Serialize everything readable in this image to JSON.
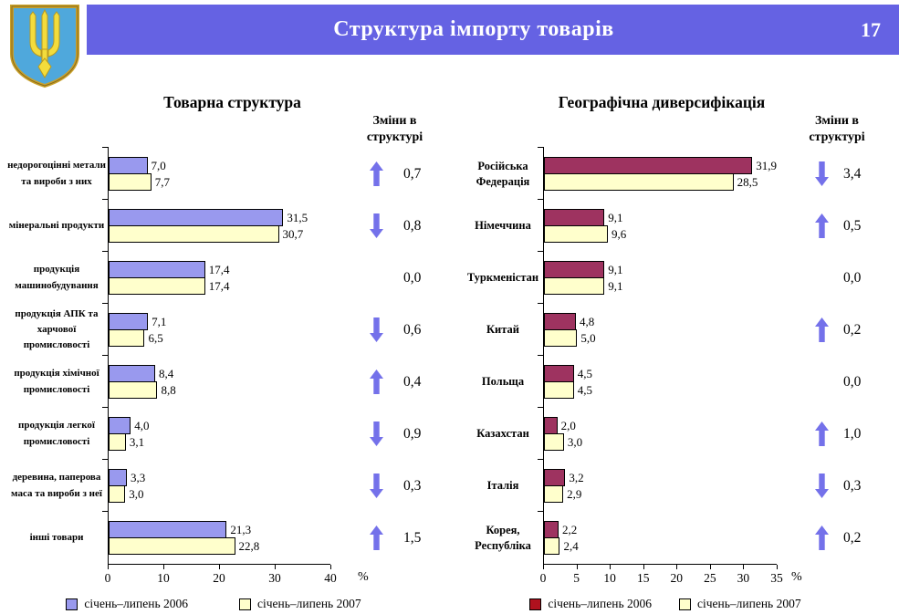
{
  "header": {
    "title": "Структура імпорту товарів",
    "page_number": "17"
  },
  "style": {
    "accent_color": "#6562E3",
    "arrow_color": "#7471EA",
    "crest_icon": "ukraine-trident-crest"
  },
  "chart_data": [
    {
      "type": "bar",
      "orientation": "horizontal",
      "title": "Товарна структура",
      "changes_label": "Зміни в\nструктурі",
      "xlabel": "%",
      "xlim": [
        0,
        40
      ],
      "xticks": [
        0,
        10,
        20,
        30,
        40
      ],
      "xtick_labels": [
        "0",
        "10",
        "20",
        "30",
        "40"
      ],
      "grid": false,
      "legend_position": "bottom",
      "series": [
        {
          "name": "січень–липень 2006",
          "color": "#9999EE",
          "swatch": "#9999EE"
        },
        {
          "name": "січень–липень 2007",
          "color": "#FFFFCC",
          "swatch": "#FFFFCC"
        }
      ],
      "rows": [
        {
          "category": "недорогоцінні метали та вироби з них",
          "v2006": 7.0,
          "v2007": 7.7,
          "label_2006": "7,0",
          "label_2007": "7,7",
          "change": "0,7",
          "change_dir": "up"
        },
        {
          "category": "мінеральні продукти",
          "v2006": 31.5,
          "v2007": 30.7,
          "label_2006": "31,5",
          "label_2007": "30,7",
          "change": "0,8",
          "change_dir": "down"
        },
        {
          "category": "продукція машинобудування",
          "v2006": 17.4,
          "v2007": 17.4,
          "label_2006": "17,4",
          "label_2007": "17,4",
          "change": "0,0",
          "change_dir": "none"
        },
        {
          "category": "продукція АПК та харчової промисловості",
          "v2006": 7.1,
          "v2007": 6.5,
          "label_2006": "7,1",
          "label_2007": "6,5",
          "change": "0,6",
          "change_dir": "down"
        },
        {
          "category": "продукція хімічної промисловості",
          "v2006": 8.4,
          "v2007": 8.8,
          "label_2006": "8,4",
          "label_2007": "8,8",
          "change": "0,4",
          "change_dir": "up"
        },
        {
          "category": "продукція легкої промисловості",
          "v2006": 4.0,
          "v2007": 3.1,
          "label_2006": "4,0",
          "label_2007": "3,1",
          "change": "0,9",
          "change_dir": "down"
        },
        {
          "category": "деревина, паперова маса та вироби з неї",
          "v2006": 3.3,
          "v2007": 3.0,
          "label_2006": "3,3",
          "label_2007": "3,0",
          "change": "0,3",
          "change_dir": "down"
        },
        {
          "category": "інші товари",
          "v2006": 21.3,
          "v2007": 22.8,
          "label_2006": "21,3",
          "label_2007": "22,8",
          "change": "1,5",
          "change_dir": "up"
        }
      ]
    },
    {
      "type": "bar",
      "orientation": "horizontal",
      "title": "Географічна диверсифікація",
      "changes_label": "Зміни в\nструктурі",
      "xlabel": "%",
      "xlim": [
        0,
        35
      ],
      "xticks": [
        0,
        5,
        10,
        15,
        20,
        25,
        30,
        35
      ],
      "xtick_labels": [
        "0",
        "5",
        "10",
        "15",
        "20",
        "25",
        "30",
        "35"
      ],
      "grid": false,
      "legend_position": "bottom",
      "series": [
        {
          "name": "січень–липень 2006",
          "color": "#9E3360",
          "swatch": "#B0111E"
        },
        {
          "name": "січень–липень 2007",
          "color": "#FFFFCC",
          "swatch": "#FFFFCC"
        }
      ],
      "rows": [
        {
          "category": "Російська Федерація",
          "v2006": 31.9,
          "v2007": 28.5,
          "label_2006": "31,9",
          "label_2007": "28,5",
          "change": "3,4",
          "change_dir": "down"
        },
        {
          "category": "Німеччина",
          "v2006": 9.1,
          "v2007": 9.6,
          "label_2006": "9,1",
          "label_2007": "9,6",
          "change": "0,5",
          "change_dir": "up"
        },
        {
          "category": "Туркменістан",
          "v2006": 9.1,
          "v2007": 9.1,
          "label_2006": "9,1",
          "label_2007": "9,1",
          "change": "0,0",
          "change_dir": "none"
        },
        {
          "category": "Китай",
          "v2006": 4.8,
          "v2007": 5.0,
          "label_2006": "4,8",
          "label_2007": "5,0",
          "change": "0,2",
          "change_dir": "up"
        },
        {
          "category": "Польща",
          "v2006": 4.5,
          "v2007": 4.5,
          "label_2006": "4,5",
          "label_2007": "4,5",
          "change": "0,0",
          "change_dir": "none"
        },
        {
          "category": "Казахстан",
          "v2006": 2.0,
          "v2007": 3.0,
          "label_2006": "2,0",
          "label_2007": "3,0",
          "change": "1,0",
          "change_dir": "up"
        },
        {
          "category": "Італія",
          "v2006": 3.2,
          "v2007": 2.9,
          "label_2006": "3,2",
          "label_2007": "2,9",
          "change": "0,3",
          "change_dir": "down"
        },
        {
          "category": "Корея, Республіка",
          "v2006": 2.2,
          "v2007": 2.4,
          "label_2006": "2,2",
          "label_2007": "2,4",
          "change": "0,2",
          "change_dir": "up"
        }
      ]
    }
  ]
}
